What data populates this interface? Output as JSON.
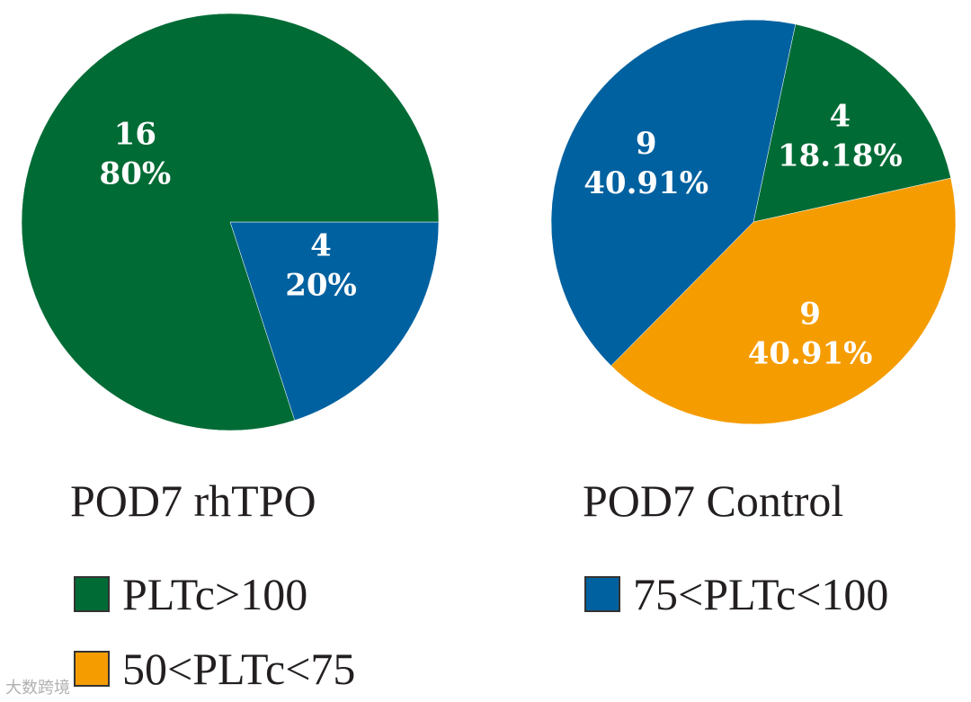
{
  "chart_data": [
    {
      "type": "pie",
      "title": "POD7 rhTPO",
      "slices": [
        {
          "category": "PLTc>100",
          "count": "16",
          "percent": "80%",
          "value": 16,
          "color": "#006b35"
        },
        {
          "category": "75<PLTc<100",
          "count": "4",
          "percent": "20%",
          "value": 4,
          "color": "#0061a0"
        }
      ]
    },
    {
      "type": "pie",
      "title": "POD7 Control",
      "slices": [
        {
          "category": "PLTc>100",
          "count": "4",
          "percent": "18.18%",
          "value": 4,
          "color": "#006b35"
        },
        {
          "category": "50<PLTc<75",
          "count": "9",
          "percent": "40.91%",
          "value": 9,
          "color": "#f59c00"
        },
        {
          "category": "75<PLTc<100",
          "count": "9",
          "percent": "40.91%",
          "value": 9,
          "color": "#0061a0"
        }
      ]
    }
  ],
  "legend": [
    {
      "label": "PLTc>100",
      "color": "#006b35"
    },
    {
      "label": "75<PLTc<100",
      "color": "#0061a0"
    },
    {
      "label": "50<PLTc<75",
      "color": "#f59c00"
    }
  ],
  "watermark": "大数跨境"
}
